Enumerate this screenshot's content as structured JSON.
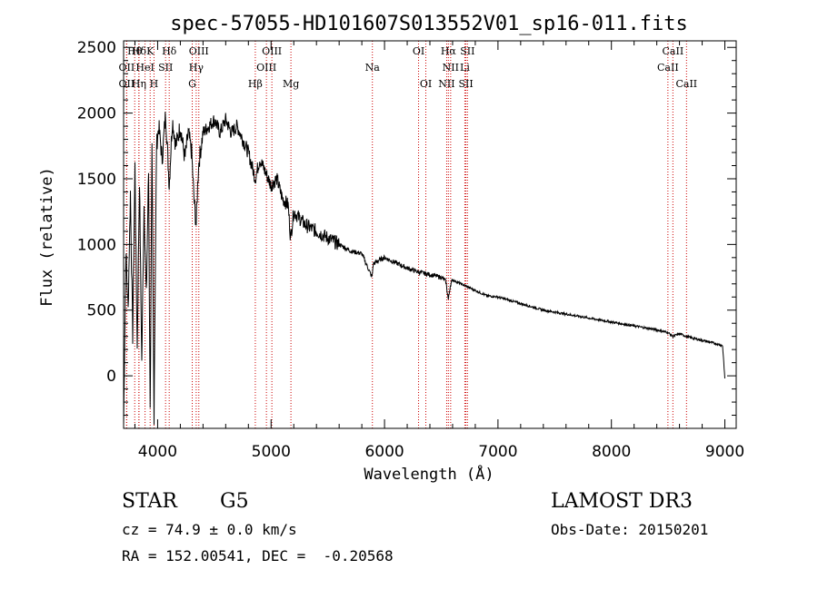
{
  "chart_data": {
    "type": "line",
    "title": "spec-57055-HD101607S013552V01_sp16-011.fits",
    "xlabel": "Wavelength (Å)",
    "ylabel": "Flux (relative)",
    "xlim": [
      3700,
      9100
    ],
    "ylim": [
      -400,
      2550
    ],
    "xticks": [
      4000,
      5000,
      6000,
      7000,
      8000,
      9000
    ],
    "yticks": [
      0,
      500,
      1000,
      1500,
      2000,
      2500
    ],
    "grid": false,
    "line_color": "#000000",
    "marker_color": "#cc0000",
    "series": [
      {
        "name": "flux",
        "x": [
          3700,
          3720,
          3740,
          3760,
          3780,
          3800,
          3820,
          3840,
          3860,
          3880,
          3900,
          3920,
          3934,
          3950,
          3968,
          3990,
          4010,
          4040,
          4070,
          4102,
          4130,
          4160,
          4200,
          4240,
          4270,
          4300,
          4320,
          4340,
          4360,
          4400,
          4450,
          4500,
          4550,
          4600,
          4650,
          4700,
          4750,
          4800,
          4861,
          4900,
          4950,
          5000,
          5050,
          5100,
          5150,
          5172,
          5200,
          5250,
          5300,
          5400,
          5500,
          5600,
          5700,
          5800,
          5890,
          5900,
          5950,
          6000,
          6100,
          6200,
          6300,
          6400,
          6500,
          6540,
          6563,
          6580,
          6600,
          6700,
          6800,
          6900,
          7000,
          7200,
          7400,
          7600,
          7800,
          8000,
          8200,
          8400,
          8498,
          8542,
          8600,
          8662,
          8700,
          8800,
          8900,
          8980,
          9000
        ],
        "y": [
          -380,
          950,
          500,
          1400,
          300,
          1600,
          200,
          1500,
          100,
          1300,
          600,
          1550,
          -280,
          1700,
          -300,
          1750,
          1900,
          1650,
          2000,
          1450,
          1950,
          1750,
          1900,
          1650,
          1850,
          1700,
          1350,
          1150,
          1600,
          1850,
          1900,
          1950,
          1850,
          1950,
          1850,
          1900,
          1800,
          1700,
          1500,
          1650,
          1550,
          1450,
          1500,
          1350,
          1300,
          1050,
          1250,
          1200,
          1150,
          1100,
          1050,
          1000,
          950,
          930,
          750,
          850,
          880,
          900,
          860,
          820,
          790,
          770,
          750,
          720,
          580,
          690,
          730,
          690,
          650,
          610,
          600,
          550,
          500,
          470,
          440,
          410,
          380,
          350,
          330,
          300,
          320,
          300,
          290,
          270,
          250,
          230,
          -20
        ]
      }
    ],
    "spectral_markers": [
      {
        "label": "Hθ",
        "x": 3798,
        "row": 0
      },
      {
        "label": "Hδ",
        "x": 3835,
        "row": 0
      },
      {
        "label": "K",
        "x": 3934,
        "row": 0
      },
      {
        "label": "Hδ",
        "x": 4102,
        "row": 0
      },
      {
        "label": "OIII",
        "x": 4363,
        "row": 0
      },
      {
        "label": "OIII",
        "x": 5007,
        "row": 0
      },
      {
        "label": "OI",
        "x": 6300,
        "row": 0
      },
      {
        "label": "Hα",
        "x": 6563,
        "row": 0
      },
      {
        "label": "SII",
        "x": 6731,
        "row": 0
      },
      {
        "label": "CaII",
        "x": 8542,
        "row": 0
      },
      {
        "label": "OII",
        "x": 3727,
        "row": 1
      },
      {
        "label": "HeI",
        "x": 3889,
        "row": 1
      },
      {
        "label": "SII",
        "x": 4070,
        "row": 1
      },
      {
        "label": "Hγ",
        "x": 4340,
        "row": 1
      },
      {
        "label": "OIII",
        "x": 4959,
        "row": 1
      },
      {
        "label": "Na",
        "x": 5893,
        "row": 1
      },
      {
        "label": "NII",
        "x": 6583,
        "row": 1
      },
      {
        "label": "Li",
        "x": 6708,
        "row": 1
      },
      {
        "label": "CaII",
        "x": 8498,
        "row": 1
      },
      {
        "label": "OII",
        "x": 3727,
        "row": 2
      },
      {
        "label": "Hη",
        "x": 3835,
        "row": 2
      },
      {
        "label": "H",
        "x": 3968,
        "row": 2
      },
      {
        "label": "G",
        "x": 4305,
        "row": 2
      },
      {
        "label": "Hβ",
        "x": 4861,
        "row": 2
      },
      {
        "label": "Mg",
        "x": 5175,
        "row": 2
      },
      {
        "label": "OI",
        "x": 6364,
        "row": 2
      },
      {
        "label": "NII",
        "x": 6548,
        "row": 2
      },
      {
        "label": "SII",
        "x": 6717,
        "row": 2
      },
      {
        "label": "CaII",
        "x": 8662,
        "row": 2
      }
    ]
  },
  "info": {
    "object_type": "STAR",
    "spectral_class": "G5",
    "survey": "LAMOST DR3",
    "cz": "cz = 74.9 ± 0.0 km/s",
    "obs_date": "Obs-Date: 20150201",
    "coords": "RA = 152.00541, DEC =  -0.20568"
  }
}
